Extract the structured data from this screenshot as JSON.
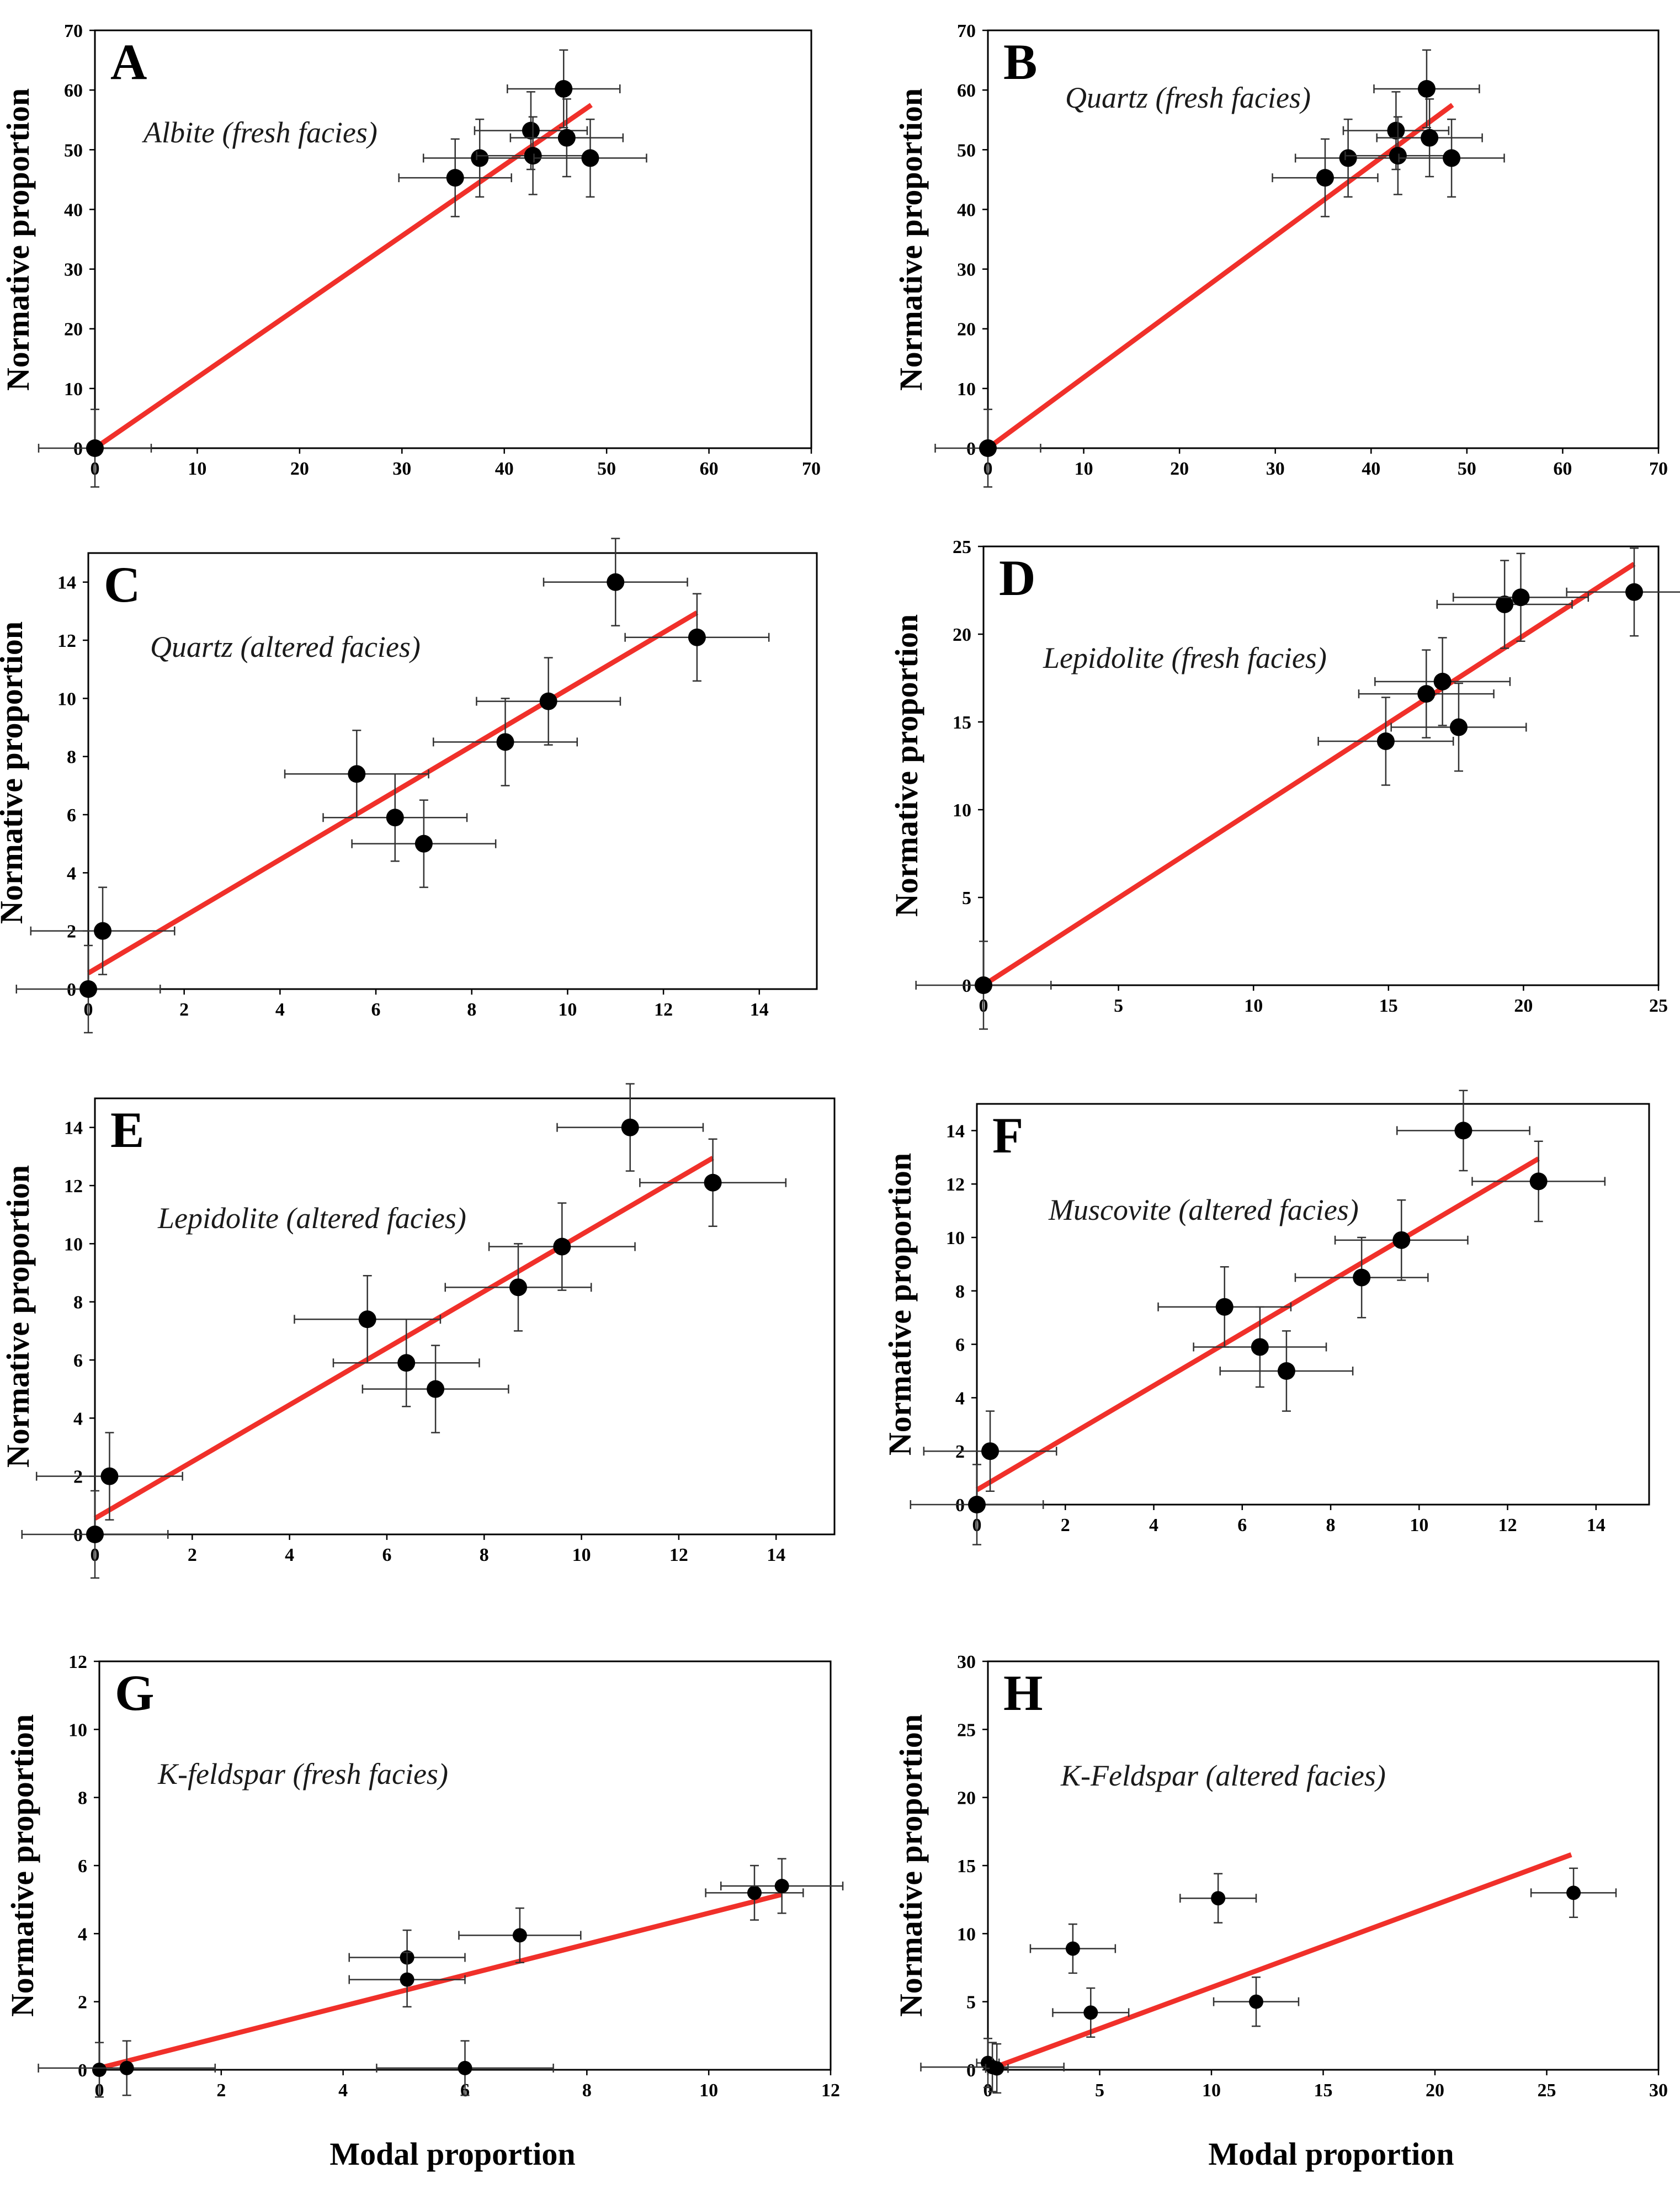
{
  "figure": {
    "xlabel": "Modal proportion",
    "ylabel": "Normative proportion"
  },
  "chart_data": [
    {
      "type": "scatter",
      "panel": "A",
      "title": "Albite (fresh facies)",
      "xlabel": "",
      "ylabel": "Normative proportion",
      "xlim": [
        0,
        70
      ],
      "ylim": [
        0,
        70
      ],
      "xticks": [
        0,
        10,
        20,
        30,
        40,
        50,
        60,
        70
      ],
      "yticks": [
        0,
        10,
        20,
        30,
        40,
        50,
        60,
        70
      ],
      "series": [
        {
          "points": [
            {
              "x": 0,
              "y": 0,
              "xerr": 5.5,
              "yerr": 6.5
            },
            {
              "x": 35.2,
              "y": 45.3,
              "xerr": 5.5,
              "yerr": 6.5
            },
            {
              "x": 37.6,
              "y": 48.6,
              "xerr": 5.5,
              "yerr": 6.5
            },
            {
              "x": 42.6,
              "y": 53.2,
              "xerr": 5.5,
              "yerr": 6.5
            },
            {
              "x": 42.8,
              "y": 49.0,
              "xerr": 5.5,
              "yerr": 6.5
            },
            {
              "x": 45.8,
              "y": 60.2,
              "xerr": 5.5,
              "yerr": 6.5
            },
            {
              "x": 46.1,
              "y": 52.0,
              "xerr": 5.5,
              "yerr": 6.5
            },
            {
              "x": 48.4,
              "y": 48.6,
              "xerr": 5.5,
              "yerr": 6.5
            }
          ]
        }
      ],
      "fit": {
        "x0": 0,
        "y0": 0,
        "x1": 48.5,
        "y1": 57.5,
        "color": "#f0302a"
      }
    },
    {
      "type": "scatter",
      "panel": "B",
      "title": "Quartz (fresh facies)",
      "xlabel": "",
      "ylabel": "Normative proportion",
      "xlim": [
        0,
        70
      ],
      "ylim": [
        0,
        70
      ],
      "xticks": [
        0,
        10,
        20,
        30,
        40,
        50,
        60,
        70
      ],
      "yticks": [
        0,
        10,
        20,
        30,
        40,
        50,
        60,
        70
      ],
      "series": [
        {
          "points": [
            {
              "x": 0,
              "y": 0,
              "xerr": 5.5,
              "yerr": 6.5
            },
            {
              "x": 35.2,
              "y": 45.3,
              "xerr": 5.5,
              "yerr": 6.5
            },
            {
              "x": 37.6,
              "y": 48.6,
              "xerr": 5.5,
              "yerr": 6.5
            },
            {
              "x": 42.6,
              "y": 53.2,
              "xerr": 5.5,
              "yerr": 6.5
            },
            {
              "x": 42.8,
              "y": 49.0,
              "xerr": 5.5,
              "yerr": 6.5
            },
            {
              "x": 45.8,
              "y": 60.2,
              "xerr": 5.5,
              "yerr": 6.5
            },
            {
              "x": 46.1,
              "y": 52.0,
              "xerr": 5.5,
              "yerr": 6.5
            },
            {
              "x": 48.4,
              "y": 48.6,
              "xerr": 5.5,
              "yerr": 6.5
            }
          ]
        }
      ],
      "fit": {
        "x0": 0,
        "y0": 0,
        "x1": 48.5,
        "y1": 57.5,
        "color": "#f0302a"
      }
    },
    {
      "type": "scatter",
      "panel": "C",
      "title": "Quartz (altered facies)",
      "xlabel": "",
      "ylabel": "Normative proportion",
      "xlim": [
        0,
        15.2
      ],
      "ylim": [
        0,
        15
      ],
      "xticks": [
        0,
        2,
        4,
        6,
        8,
        10,
        12,
        14
      ],
      "yticks": [
        0,
        2,
        4,
        6,
        8,
        10,
        12,
        14
      ],
      "series": [
        {
          "points": [
            {
              "x": 0,
              "y": 0,
              "xerr": 1.5,
              "yerr": 1.5
            },
            {
              "x": 0.3,
              "y": 2.0,
              "xerr": 1.5,
              "yerr": 1.5
            },
            {
              "x": 5.6,
              "y": 7.4,
              "xerr": 1.5,
              "yerr": 1.5
            },
            {
              "x": 6.4,
              "y": 5.9,
              "xerr": 1.5,
              "yerr": 1.5
            },
            {
              "x": 7.0,
              "y": 5.0,
              "xerr": 1.5,
              "yerr": 1.5
            },
            {
              "x": 8.7,
              "y": 8.5,
              "xerr": 1.5,
              "yerr": 1.5
            },
            {
              "x": 9.6,
              "y": 9.9,
              "xerr": 1.5,
              "yerr": 1.5
            },
            {
              "x": 11.0,
              "y": 14.0,
              "xerr": 1.5,
              "yerr": 1.5
            },
            {
              "x": 12.7,
              "y": 12.1,
              "xerr": 1.5,
              "yerr": 1.5
            }
          ]
        }
      ],
      "fit": {
        "x0": 0,
        "y0": 0.55,
        "x1": 12.7,
        "y1": 12.95,
        "color": "#f0302a"
      }
    },
    {
      "type": "scatter",
      "panel": "D",
      "title": "Lepidolite (fresh facies)",
      "xlabel": "",
      "ylabel": "Normative proportion",
      "xlim": [
        0,
        25
      ],
      "ylim": [
        0,
        25
      ],
      "xticks": [
        0,
        5,
        10,
        15,
        20,
        25
      ],
      "yticks": [
        0,
        5,
        10,
        15,
        20,
        25
      ],
      "series": [
        {
          "points": [
            {
              "x": 0,
              "y": 0,
              "xerr": 2.5,
              "yerr": 2.5
            },
            {
              "x": 14.9,
              "y": 13.9,
              "xerr": 2.5,
              "yerr": 2.5
            },
            {
              "x": 16.4,
              "y": 16.6,
              "xerr": 2.5,
              "yerr": 2.5
            },
            {
              "x": 17.0,
              "y": 17.3,
              "xerr": 2.5,
              "yerr": 2.5
            },
            {
              "x": 17.6,
              "y": 14.7,
              "xerr": 2.5,
              "yerr": 2.5
            },
            {
              "x": 19.3,
              "y": 21.7,
              "xerr": 2.5,
              "yerr": 2.5
            },
            {
              "x": 19.9,
              "y": 22.1,
              "xerr": 2.5,
              "yerr": 2.5
            },
            {
              "x": 24.1,
              "y": 22.4,
              "xerr": 2.5,
              "yerr": 2.5
            }
          ]
        }
      ],
      "fit": {
        "x0": 0,
        "y0": 0,
        "x1": 24.1,
        "y1": 24.0,
        "color": "#f0302a"
      }
    },
    {
      "type": "scatter",
      "panel": "E",
      "title": "Lepidolite (altered facies)",
      "xlabel": "",
      "ylabel": "Normative proportion",
      "xlim": [
        0,
        15.2
      ],
      "ylim": [
        0,
        15
      ],
      "xticks": [
        0,
        2,
        4,
        6,
        8,
        10,
        12,
        14
      ],
      "yticks": [
        0,
        2,
        4,
        6,
        8,
        10,
        12,
        14
      ],
      "series": [
        {
          "points": [
            {
              "x": 0,
              "y": 0,
              "xerr": 1.5,
              "yerr": 1.5
            },
            {
              "x": 0.3,
              "y": 2.0,
              "xerr": 1.5,
              "yerr": 1.5
            },
            {
              "x": 5.6,
              "y": 7.4,
              "xerr": 1.5,
              "yerr": 1.5
            },
            {
              "x": 6.4,
              "y": 5.9,
              "xerr": 1.5,
              "yerr": 1.5
            },
            {
              "x": 7.0,
              "y": 5.0,
              "xerr": 1.5,
              "yerr": 1.5
            },
            {
              "x": 8.7,
              "y": 8.5,
              "xerr": 1.5,
              "yerr": 1.5
            },
            {
              "x": 9.6,
              "y": 9.9,
              "xerr": 1.5,
              "yerr": 1.5
            },
            {
              "x": 11.0,
              "y": 14.0,
              "xerr": 1.5,
              "yerr": 1.5
            },
            {
              "x": 12.7,
              "y": 12.1,
              "xerr": 1.5,
              "yerr": 1.5
            }
          ]
        }
      ],
      "fit": {
        "x0": 0,
        "y0": 0.55,
        "x1": 12.7,
        "y1": 12.95,
        "color": "#f0302a"
      }
    },
    {
      "type": "scatter",
      "panel": "F",
      "title": "Muscovite (altered facies)",
      "xlabel": "",
      "ylabel": "Normative proportion",
      "xlim": [
        0,
        15.2
      ],
      "ylim": [
        0,
        15
      ],
      "xticks": [
        0,
        2,
        4,
        6,
        8,
        10,
        12,
        14
      ],
      "yticks": [
        0,
        2,
        4,
        6,
        8,
        10,
        12,
        14
      ],
      "series": [
        {
          "points": [
            {
              "x": 0,
              "y": 0,
              "xerr": 1.5,
              "yerr": 1.5
            },
            {
              "x": 0.3,
              "y": 2.0,
              "xerr": 1.5,
              "yerr": 1.5
            },
            {
              "x": 5.6,
              "y": 7.4,
              "xerr": 1.5,
              "yerr": 1.5
            },
            {
              "x": 6.4,
              "y": 5.9,
              "xerr": 1.5,
              "yerr": 1.5
            },
            {
              "x": 7.0,
              "y": 5.0,
              "xerr": 1.5,
              "yerr": 1.5
            },
            {
              "x": 8.7,
              "y": 8.5,
              "xerr": 1.5,
              "yerr": 1.5
            },
            {
              "x": 9.6,
              "y": 9.9,
              "xerr": 1.5,
              "yerr": 1.5
            },
            {
              "x": 11.0,
              "y": 14.0,
              "xerr": 1.5,
              "yerr": 1.5
            },
            {
              "x": 12.7,
              "y": 12.1,
              "xerr": 1.5,
              "yerr": 1.5
            }
          ]
        }
      ],
      "fit": {
        "x0": 0,
        "y0": 0.55,
        "x1": 12.7,
        "y1": 12.95,
        "color": "#f0302a"
      }
    },
    {
      "type": "scatter",
      "panel": "G",
      "title": "K-feldspar (fresh facies)",
      "xlabel": "Modal proportion",
      "ylabel": "Normative proportion",
      "xlim": [
        0,
        12
      ],
      "ylim": [
        0,
        12
      ],
      "xticks": [
        0,
        2,
        4,
        6,
        8,
        10,
        12
      ],
      "yticks": [
        0,
        2,
        4,
        6,
        8,
        10,
        12
      ],
      "series": [
        {
          "points": [
            {
              "x": 0,
              "y": 0,
              "xerr": 0,
              "yerr": 0.8
            },
            {
              "x": 0.45,
              "y": 0.05,
              "xerr": 1.45,
              "yerr": 0.8
            },
            {
              "x": 5.05,
              "y": 3.3,
              "xerr": 0.95,
              "yerr": 0.8
            },
            {
              "x": 5.05,
              "y": 2.65,
              "xerr": 0.95,
              "yerr": 0.8
            },
            {
              "x": 6.0,
              "y": 0.05,
              "xerr": 1.45,
              "yerr": 0.8
            },
            {
              "x": 6.9,
              "y": 3.95,
              "xerr": 1.0,
              "yerr": 0.8
            },
            {
              "x": 10.75,
              "y": 5.2,
              "xerr": 0.8,
              "yerr": 0.8
            },
            {
              "x": 11.2,
              "y": 5.4,
              "xerr": 1.0,
              "yerr": 0.8
            }
          ]
        }
      ],
      "fit": {
        "x0": 0,
        "y0": 0.05,
        "x1": 11.2,
        "y1": 5.15,
        "color": "#f0302a"
      }
    },
    {
      "type": "scatter",
      "panel": "H",
      "title": "K-Feldspar (altered facies)",
      "xlabel": "Modal proportion",
      "ylabel": "Normative proportion",
      "xlim": [
        0,
        30
      ],
      "ylim": [
        0,
        30
      ],
      "xticks": [
        0,
        5,
        10,
        15,
        20,
        25,
        30
      ],
      "yticks": [
        0,
        5,
        10,
        15,
        20,
        25,
        30
      ],
      "series": [
        {
          "points": [
            {
              "x": 0,
              "y": 0.5,
              "xerr": 0.5,
              "yerr": 1.8
            },
            {
              "x": 0.2,
              "y": 0.2,
              "xerr": 3.2,
              "yerr": 1.8
            },
            {
              "x": 0.4,
              "y": 0.1,
              "xerr": 0.5,
              "yerr": 1.8
            },
            {
              "x": 3.8,
              "y": 8.9,
              "xerr": 1.9,
              "yerr": 1.8
            },
            {
              "x": 4.6,
              "y": 4.2,
              "xerr": 1.7,
              "yerr": 1.8
            },
            {
              "x": 10.3,
              "y": 12.6,
              "xerr": 1.7,
              "yerr": 1.8
            },
            {
              "x": 12.0,
              "y": 5.0,
              "xerr": 1.9,
              "yerr": 1.8
            },
            {
              "x": 26.2,
              "y": 13.0,
              "xerr": 1.9,
              "yerr": 1.8
            }
          ]
        }
      ],
      "fit": {
        "x0": 0,
        "y0": 0,
        "x1": 26.1,
        "y1": 15.8,
        "color": "#f0302a"
      }
    }
  ]
}
